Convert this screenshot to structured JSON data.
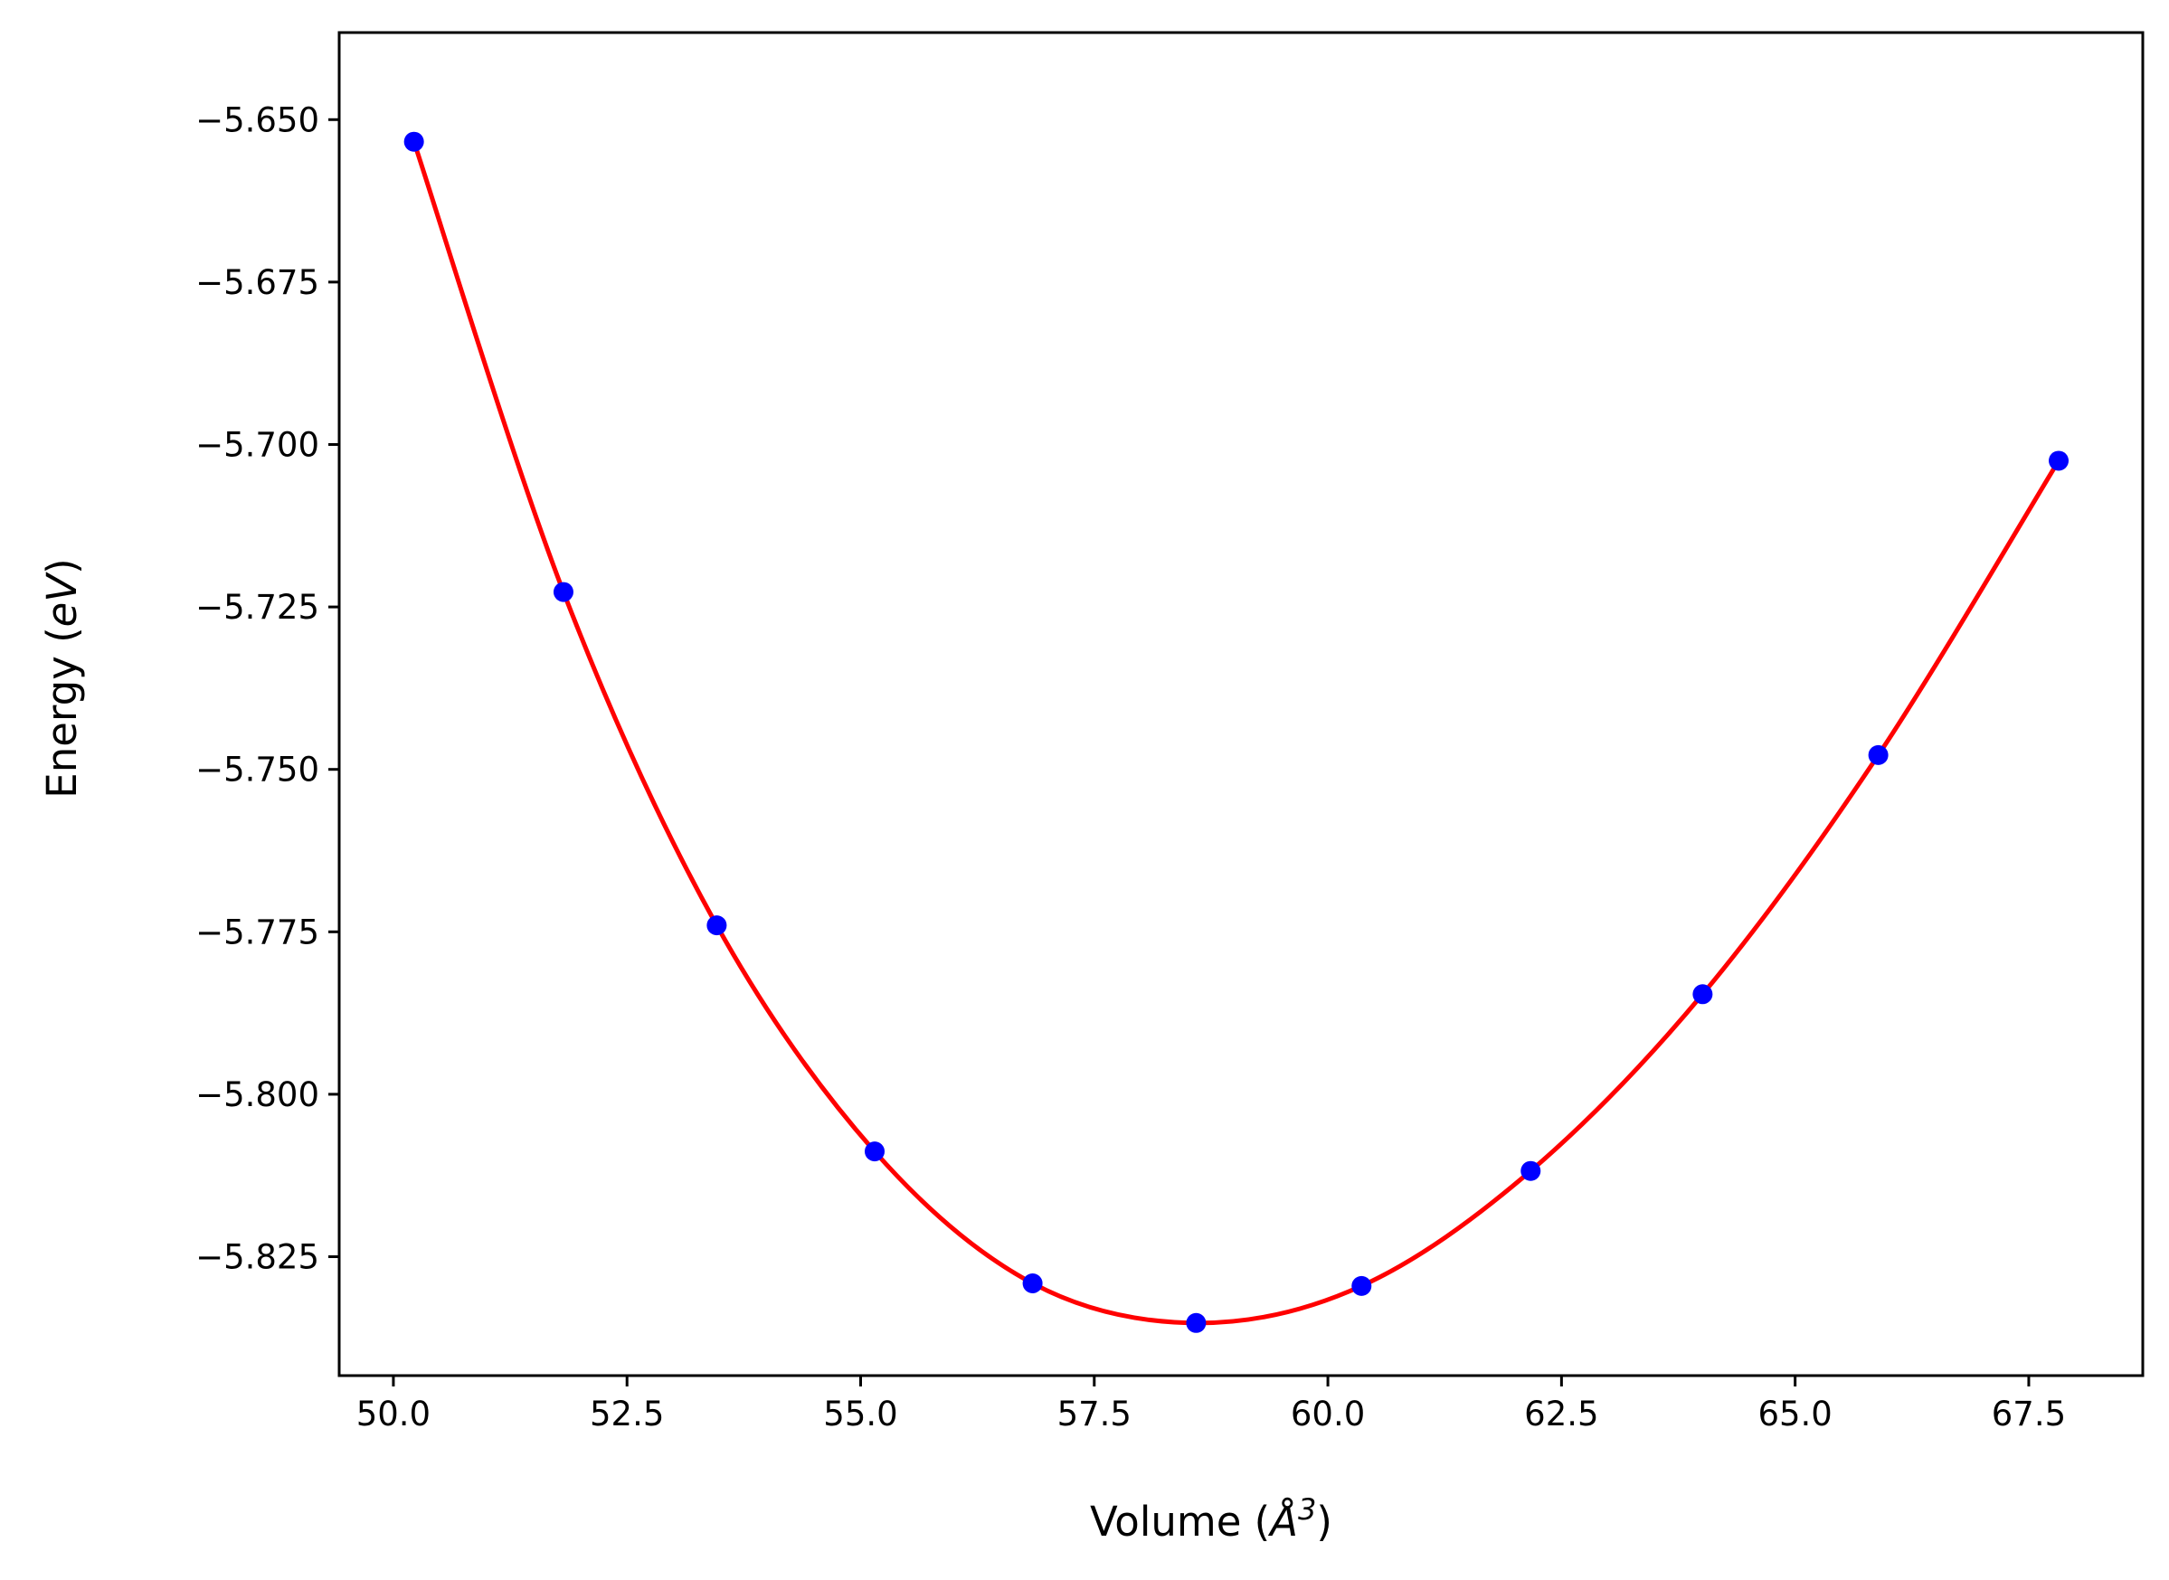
{
  "chart_data": {
    "type": "scatter",
    "xlabel": {
      "prefix": "Volume (",
      "symbol": "Å",
      "superscript": "3",
      "suffix": ")"
    },
    "ylabel": {
      "prefix": "Energy (",
      "unit": "eV",
      "suffix": ")"
    },
    "xlim": [
      49.42,
      68.72
    ],
    "ylim": [
      -5.8433,
      -5.6366
    ],
    "xticks": [
      50.0,
      52.5,
      55.0,
      57.5,
      60.0,
      62.5,
      65.0,
      67.5
    ],
    "xtick_labels": [
      "50.0",
      "52.5",
      "55.0",
      "57.5",
      "60.0",
      "62.5",
      "65.0",
      "67.5"
    ],
    "yticks": [
      -5.65,
      -5.675,
      -5.7,
      -5.725,
      -5.75,
      -5.775,
      -5.8,
      -5.825
    ],
    "ytick_labels": [
      "−5.650",
      "−5.675",
      "−5.700",
      "−5.725",
      "−5.750",
      "−5.775",
      "−5.800",
      "−5.825"
    ],
    "grid": false,
    "series": [
      {
        "kind": "points",
        "color": "#0000ff",
        "x": [
          50.22,
          51.82,
          53.46,
          55.15,
          56.84,
          58.59,
          60.36,
          62.17,
          64.01,
          65.89,
          67.82
        ],
        "y": [
          -5.6534,
          -5.7227,
          -5.774,
          -5.8088,
          -5.8291,
          -5.8352,
          -5.8295,
          -5.8118,
          -5.7846,
          -5.7478,
          -5.7025
        ]
      },
      {
        "kind": "fit-curve",
        "color": "#ff0000",
        "x": [
          50.22,
          51.82,
          53.46,
          55.15,
          56.84,
          58.59,
          60.36,
          62.17,
          64.01,
          65.89,
          67.82
        ],
        "y": [
          -5.6534,
          -5.7227,
          -5.774,
          -5.8088,
          -5.8291,
          -5.8352,
          -5.8295,
          -5.8118,
          -5.7846,
          -5.7478,
          -5.7025
        ]
      }
    ]
  }
}
